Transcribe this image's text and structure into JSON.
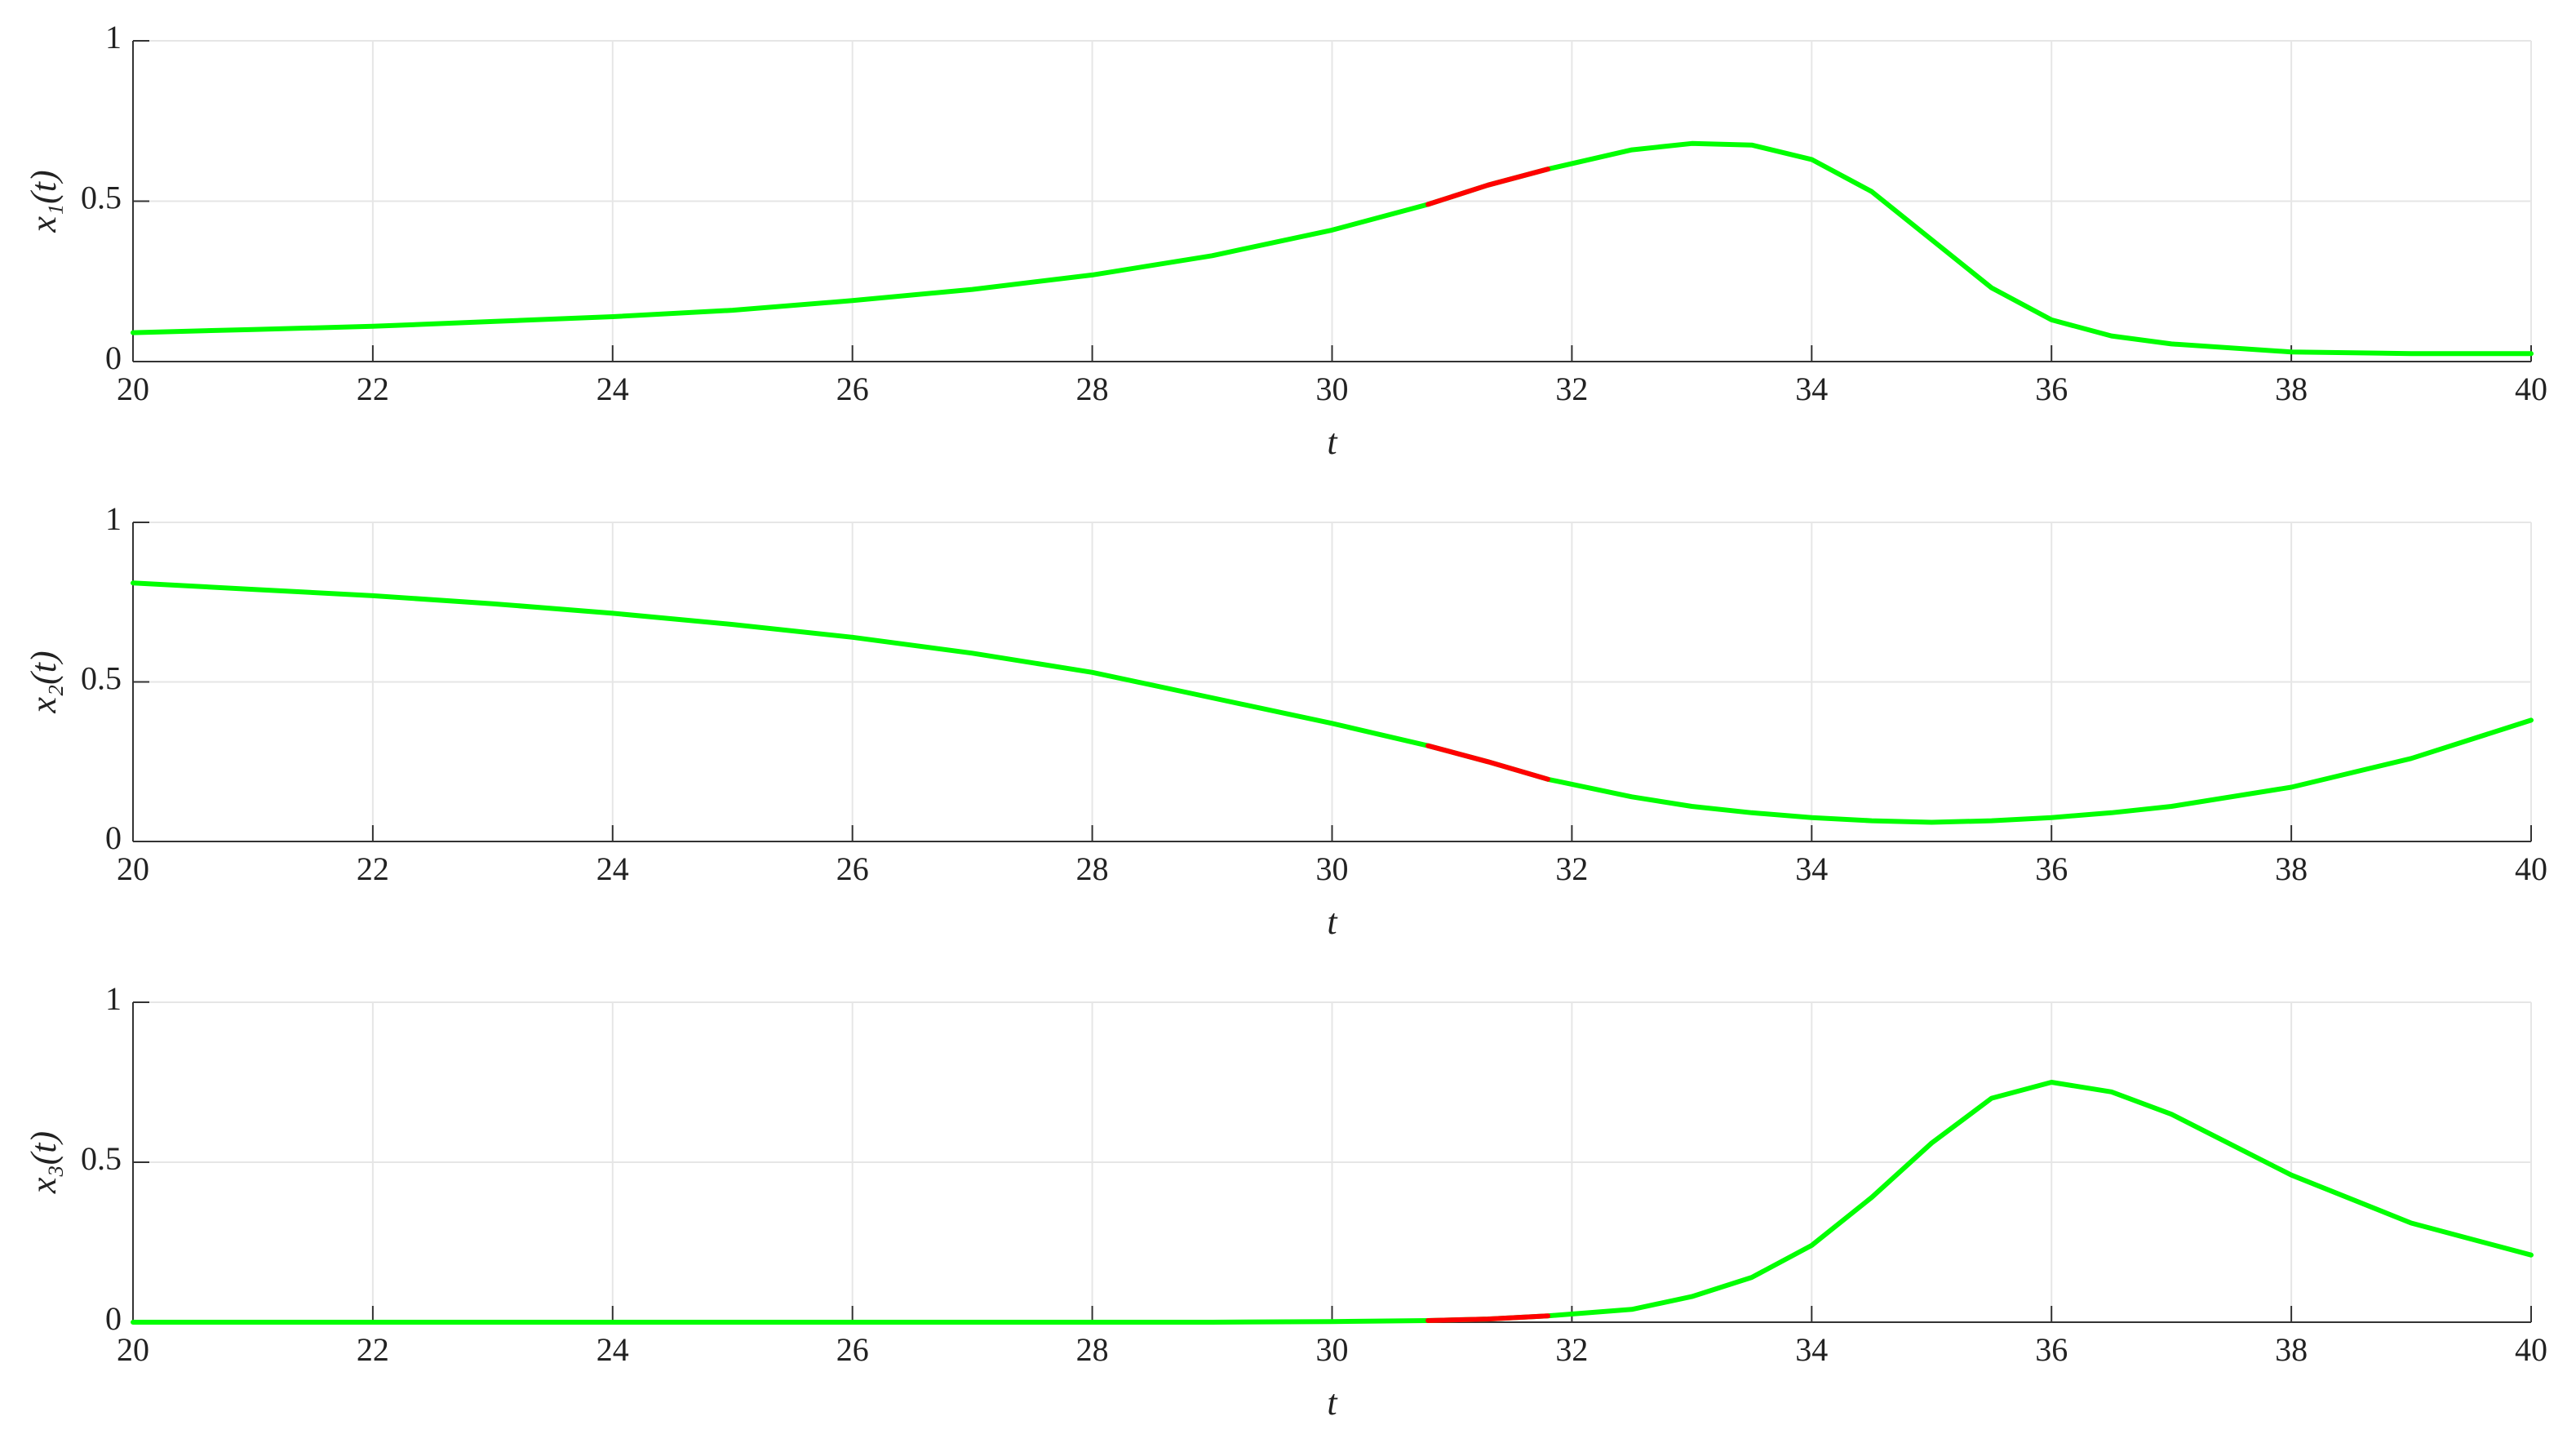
{
  "chart_data": [
    {
      "type": "line",
      "xlabel": "t",
      "ylabel": "x₁(t)",
      "x": [
        20,
        21,
        22,
        23,
        24,
        25,
        26,
        27,
        28,
        29,
        30,
        30.8,
        31.3,
        31.8,
        32.5,
        33,
        33.5,
        34,
        34.5,
        35,
        35.5,
        36,
        36.5,
        37,
        38,
        39,
        40
      ],
      "series": [
        {
          "color": "#00ff00",
          "values": [
            0.09,
            0.1,
            0.11,
            0.125,
            0.14,
            0.16,
            0.19,
            0.225,
            0.27,
            0.33,
            0.41,
            0.49,
            0.55,
            0.6,
            0.66,
            0.68,
            0.675,
            0.63,
            0.53,
            0.38,
            0.23,
            0.13,
            0.08,
            0.055,
            0.03,
            0.025,
            0.025
          ]
        },
        {
          "color": "#ff0000",
          "values": [
            null,
            null,
            null,
            null,
            null,
            null,
            null,
            null,
            null,
            null,
            null,
            0.49,
            0.55,
            0.6,
            null,
            null,
            null,
            null,
            null,
            null,
            null,
            null,
            null,
            null,
            null,
            null,
            null
          ]
        }
      ],
      "xlim": [
        20,
        40
      ],
      "ylim": [
        0,
        1
      ],
      "xticks": [
        20,
        22,
        24,
        26,
        28,
        30,
        32,
        34,
        36,
        38,
        40
      ],
      "yticks": [
        0,
        0.5,
        1
      ],
      "grid": true
    },
    {
      "type": "line",
      "xlabel": "t",
      "ylabel": "x₂(t)",
      "x": [
        20,
        21,
        22,
        23,
        24,
        25,
        26,
        27,
        28,
        29,
        30,
        30.8,
        31.3,
        31.8,
        32.5,
        33,
        33.5,
        34,
        34.5,
        35,
        35.5,
        36,
        36.5,
        37,
        38,
        39,
        40
      ],
      "series": [
        {
          "color": "#00ff00",
          "values": [
            0.81,
            0.79,
            0.77,
            0.745,
            0.715,
            0.68,
            0.64,
            0.59,
            0.53,
            0.45,
            0.37,
            0.3,
            0.25,
            0.195,
            0.14,
            0.11,
            0.09,
            0.075,
            0.065,
            0.06,
            0.065,
            0.075,
            0.09,
            0.11,
            0.17,
            0.26,
            0.38
          ]
        },
        {
          "color": "#ff0000",
          "values": [
            null,
            null,
            null,
            null,
            null,
            null,
            null,
            null,
            null,
            null,
            null,
            0.3,
            0.25,
            0.195,
            null,
            null,
            null,
            null,
            null,
            null,
            null,
            null,
            null,
            null,
            null,
            null,
            null
          ]
        }
      ],
      "xlim": [
        20,
        40
      ],
      "ylim": [
        0,
        1
      ],
      "xticks": [
        20,
        22,
        24,
        26,
        28,
        30,
        32,
        34,
        36,
        38,
        40
      ],
      "yticks": [
        0,
        0.5,
        1
      ],
      "grid": true
    },
    {
      "type": "line",
      "xlabel": "t",
      "ylabel": "x₃(t)",
      "x": [
        20,
        21,
        22,
        23,
        24,
        25,
        26,
        27,
        28,
        29,
        30,
        30.8,
        31.3,
        31.8,
        32.5,
        33,
        33.5,
        34,
        34.5,
        35,
        35.5,
        36,
        36.5,
        37,
        38,
        39,
        40
      ],
      "series": [
        {
          "color": "#00ff00",
          "values": [
            0,
            0,
            0,
            0,
            0,
            0,
            0,
            0,
            0,
            0,
            0.002,
            0.005,
            0.01,
            0.02,
            0.04,
            0.08,
            0.14,
            0.24,
            0.39,
            0.56,
            0.7,
            0.75,
            0.72,
            0.65,
            0.46,
            0.31,
            0.21
          ]
        },
        {
          "color": "#ff0000",
          "values": [
            null,
            null,
            null,
            null,
            null,
            null,
            null,
            null,
            null,
            null,
            null,
            0.005,
            0.01,
            0.02,
            null,
            null,
            null,
            null,
            null,
            null,
            null,
            null,
            null,
            null,
            null,
            null,
            null
          ]
        }
      ],
      "xlim": [
        20,
        40
      ],
      "ylim": [
        0,
        1
      ],
      "xticks": [
        20,
        22,
        24,
        26,
        28,
        30,
        32,
        34,
        36,
        38,
        40
      ],
      "yticks": [
        0,
        0.5,
        1
      ],
      "grid": true
    }
  ]
}
